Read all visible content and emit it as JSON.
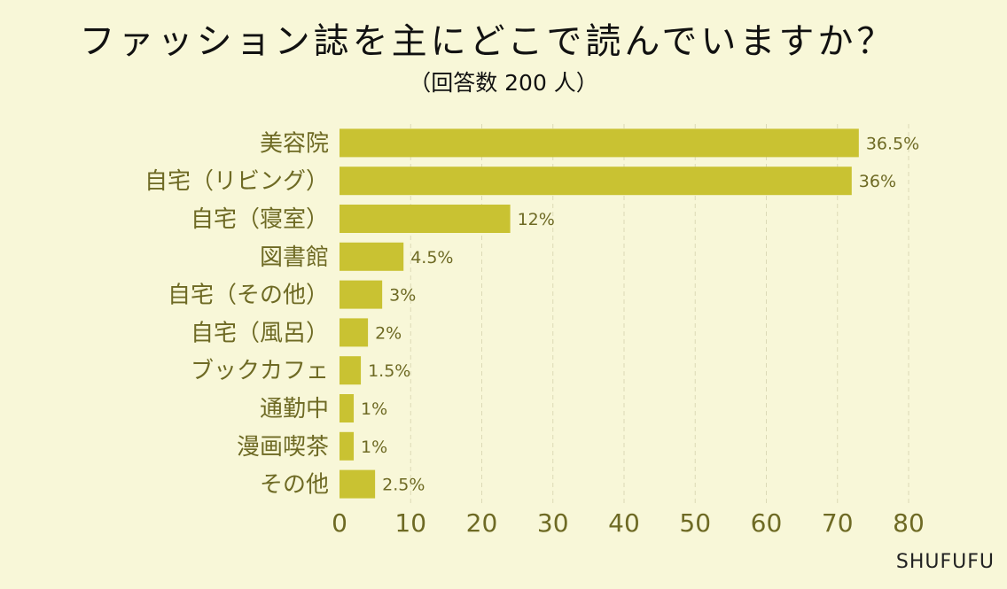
{
  "title": "ファッション誌を主にどこで読んでいますか？",
  "subtitle": "（回答数 200 人）",
  "brand": "SHUFUFU",
  "colors": {
    "bar": "#c9c232",
    "background": "#f8f7d8",
    "label": "#6e6a24",
    "grid": "#dcdab6"
  },
  "chart_data": {
    "type": "bar",
    "orientation": "horizontal",
    "categories": [
      "美容院",
      "自宅（リビング）",
      "自宅（寝室）",
      "図書館",
      "自宅（その他）",
      "自宅（風呂）",
      "ブックカフェ",
      "通勤中",
      "漫画喫茶",
      "その他"
    ],
    "values": [
      73,
      72,
      24,
      9,
      6,
      4,
      3,
      2,
      2,
      5
    ],
    "data_labels": [
      "36.5%",
      "36%",
      "12%",
      "4.5%",
      "3%",
      "2%",
      "1.5%",
      "1%",
      "1%",
      "2.5%"
    ],
    "xlim": [
      0,
      80
    ],
    "xticks": [
      0,
      10,
      20,
      30,
      40,
      50,
      60,
      70,
      80
    ],
    "grid": "vertical dashed"
  }
}
